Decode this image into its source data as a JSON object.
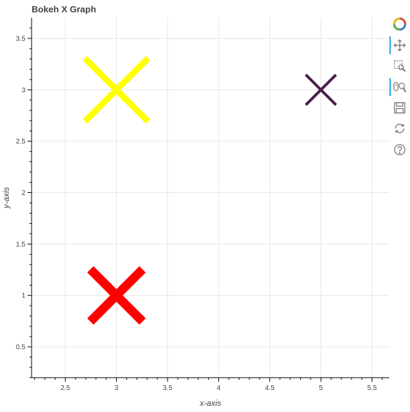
{
  "chart_data": {
    "type": "scatter",
    "title": "Bokeh X Graph",
    "xlabel": "x-axis",
    "ylabel": "y-axis",
    "xlim": [
      2.17,
      5.67
    ],
    "ylim": [
      0.2,
      3.7
    ],
    "grid": true,
    "x_ticks": [
      "2.5",
      "3",
      "3.5",
      "4",
      "4.5",
      "5",
      "5.5"
    ],
    "y_ticks": [
      "0.5",
      "1",
      "1.5",
      "2",
      "2.5",
      "3",
      "3.5"
    ],
    "points": [
      {
        "x": 3,
        "y": 1,
        "color": "#ff0000",
        "size": "medium"
      },
      {
        "x": 3,
        "y": 3,
        "color": "#ffff00",
        "size": "large"
      },
      {
        "x": 5,
        "y": 3,
        "color": "#4a1f4a",
        "size": "small"
      }
    ]
  },
  "toolbar": {
    "tools": [
      "bokeh-logo-icon",
      "pan-icon",
      "box-zoom-icon",
      "wheel-zoom-icon",
      "save-icon",
      "reset-icon",
      "help-icon"
    ],
    "active": [
      "pan-icon",
      "wheel-zoom-icon"
    ],
    "accent": "#26aae1"
  }
}
